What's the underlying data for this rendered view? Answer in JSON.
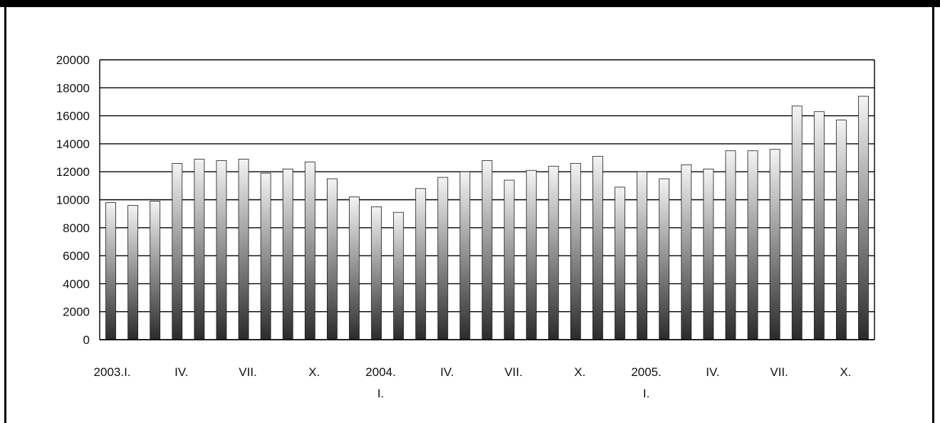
{
  "chart_data": {
    "type": "bar",
    "title": "",
    "xlabel": "",
    "ylabel": "",
    "ylim": [
      0,
      20000
    ],
    "yticks": [
      0,
      2000,
      4000,
      6000,
      8000,
      10000,
      12000,
      14000,
      16000,
      18000,
      20000
    ],
    "ytick_labels": [
      "0",
      "2000",
      "4000",
      "6000",
      "8000",
      "10000",
      "12000",
      "14000",
      "16000",
      "18000",
      "20000"
    ],
    "grid": true,
    "legend": "none",
    "categories": [
      "2003.I",
      "2003.II",
      "2003.III",
      "2003.IV",
      "2003.V",
      "2003.VI",
      "2003.VII",
      "2003.VIII",
      "2003.IX",
      "2003.X",
      "2003.XI",
      "2003.XII",
      "2004.I",
      "2004.II",
      "2004.III",
      "2004.IV",
      "2004.V",
      "2004.VI",
      "2004.VII",
      "2004.VIII",
      "2004.IX",
      "2004.X",
      "2004.XI",
      "2004.XII",
      "2005.I",
      "2005.II",
      "2005.III",
      "2005.IV",
      "2005.V",
      "2005.VI",
      "2005.VII",
      "2005.VIII",
      "2005.IX",
      "2005.X",
      "2005.XI"
    ],
    "values": [
      9800,
      9600,
      9900,
      12600,
      12900,
      12800,
      12900,
      11900,
      12200,
      12700,
      11500,
      10200,
      9500,
      9100,
      10800,
      11600,
      12000,
      12800,
      11400,
      12100,
      12400,
      12600,
      13100,
      10900,
      12000,
      11500,
      12500,
      12200,
      13500,
      13500,
      13600,
      16700,
      16300,
      15700,
      17400
    ],
    "xtick_labels": [
      {
        "index": 0,
        "lines": [
          "2003.I."
        ]
      },
      {
        "index": 3,
        "lines": [
          "IV."
        ]
      },
      {
        "index": 6,
        "lines": [
          "VII."
        ]
      },
      {
        "index": 9,
        "lines": [
          "X."
        ]
      },
      {
        "index": 12,
        "lines": [
          "2004.",
          "I."
        ]
      },
      {
        "index": 15,
        "lines": [
          "IV."
        ]
      },
      {
        "index": 18,
        "lines": [
          "VII."
        ]
      },
      {
        "index": 21,
        "lines": [
          "X."
        ]
      },
      {
        "index": 24,
        "lines": [
          "2005.",
          "I."
        ]
      },
      {
        "index": 27,
        "lines": [
          "IV."
        ]
      },
      {
        "index": 30,
        "lines": [
          "VII."
        ]
      },
      {
        "index": 33,
        "lines": [
          "X."
        ]
      }
    ],
    "colors": {
      "bar_top": "#f4f4f4",
      "bar_bottom": "#2b2b2b",
      "grid": "#000000",
      "text": "#111111"
    }
  }
}
